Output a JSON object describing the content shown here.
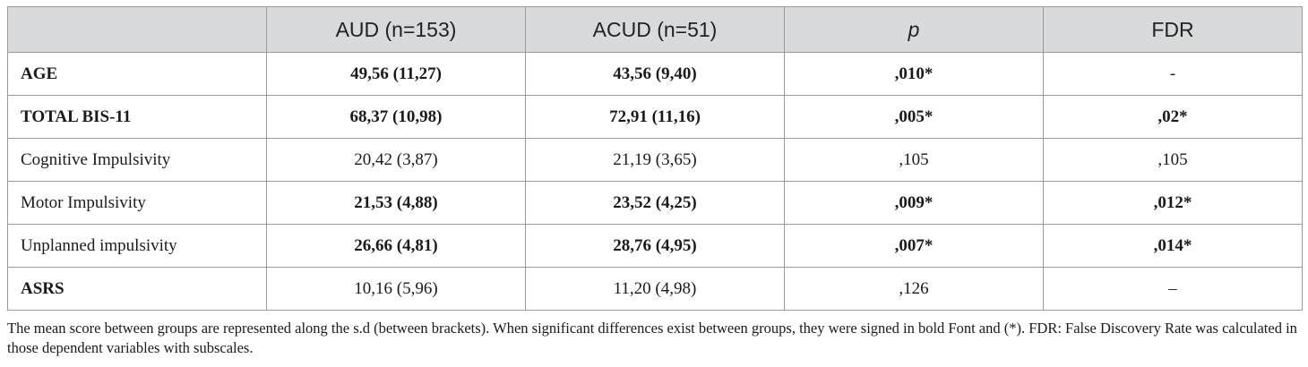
{
  "table": {
    "headers": [
      "",
      "AUD (n=153)",
      "ACUD (n=51)",
      "p",
      "FDR"
    ],
    "rows": [
      {
        "label": "AGE",
        "aud": "49,56 (11,27)",
        "acud": "43,56 (9,40)",
        "p": ",010*",
        "fdr": "-"
      },
      {
        "label": "TOTAL BIS-11",
        "aud": "68,37 (10,98)",
        "acud": "72,91 (11,16)",
        "p": ",005*",
        "fdr": ",02*"
      },
      {
        "label": "Cognitive Impulsivity",
        "aud": "20,42 (3,87)",
        "acud": "21,19 (3,65)",
        "p": ",105",
        "fdr": ",105"
      },
      {
        "label": "Motor Impulsivity",
        "aud": "21,53 (4,88)",
        "acud": "23,52 (4,25)",
        "p": ",009*",
        "fdr": ",012*"
      },
      {
        "label": "Unplanned impulsivity",
        "aud": "26,66 (4,81)",
        "acud": "28,76 (4,95)",
        "p": ",007*",
        "fdr": ",014*"
      },
      {
        "label": "ASRS",
        "aud": "10,16 (5,96)",
        "acud": "11,20 (4,98)",
        "p": ",126",
        "fdr": "–"
      }
    ]
  },
  "footnote": "The mean score between groups are represented along the s.d (between brackets). When significant differences exist between groups, they were signed in bold Font and (*). FDR: False Discovery Rate was calculated in those dependent variables with subscales."
}
